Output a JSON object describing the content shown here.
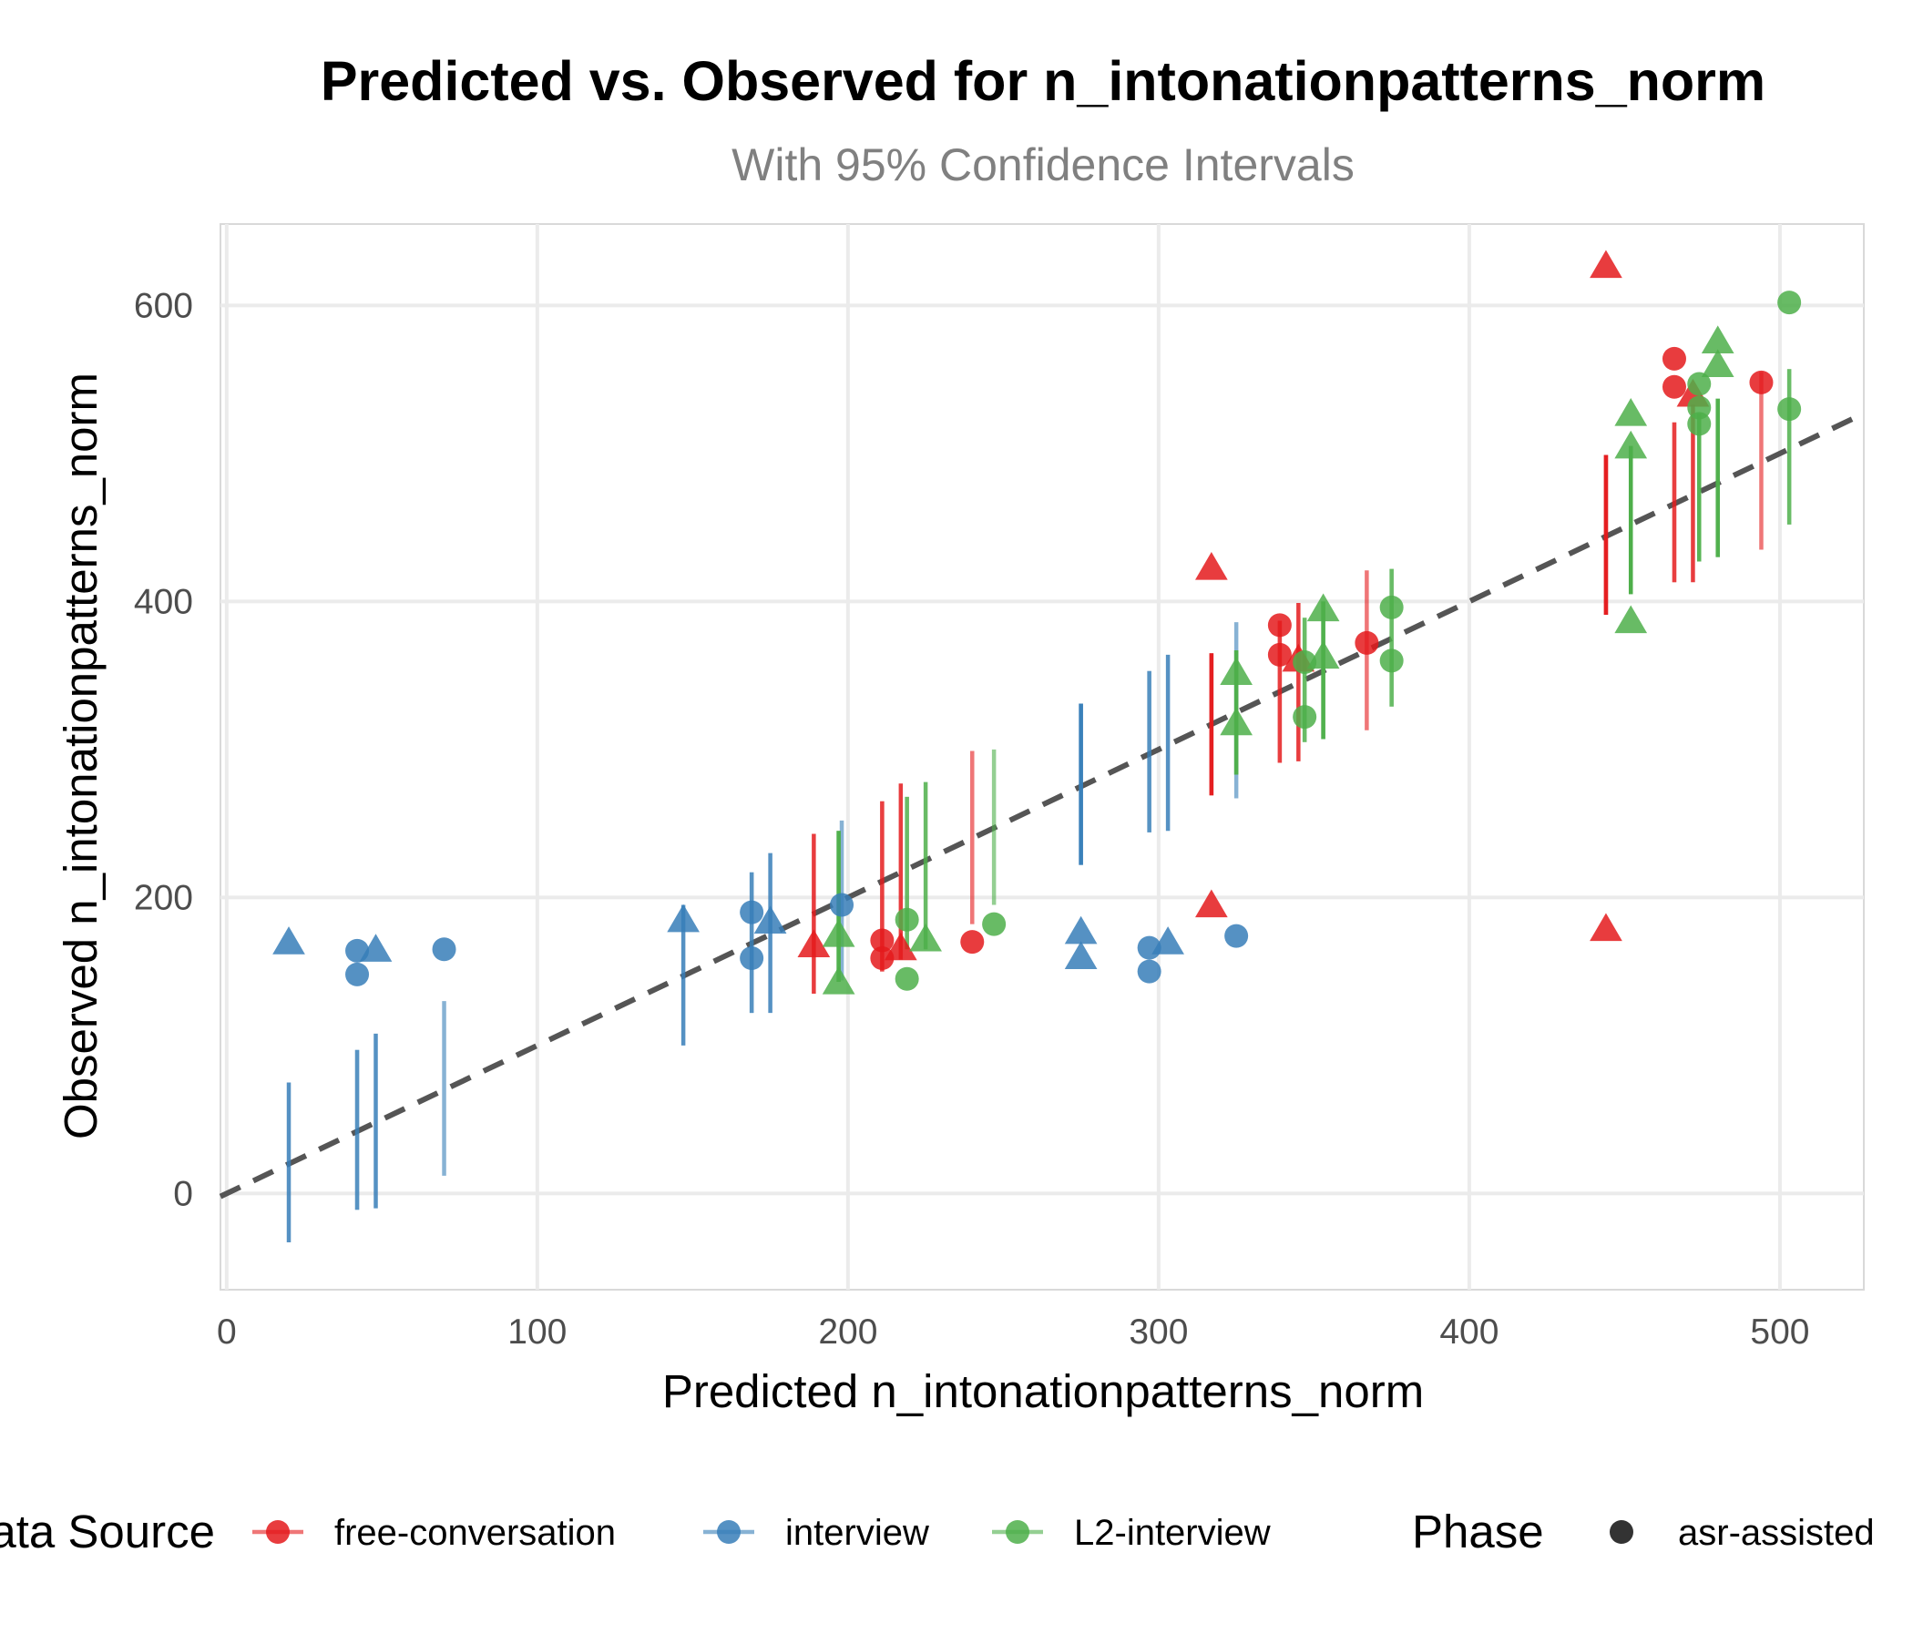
{
  "chart_data": {
    "type": "scatter",
    "title": "Predicted vs. Observed for n_intonationpatterns_norm",
    "subtitle": "With 95% Confidence Intervals",
    "xlabel": "Predicted n_intonationpatterns_norm",
    "ylabel": "Observed n_intonationpatterns_norm",
    "xlim": [
      -2,
      527
    ],
    "ylim": [
      -65,
      655
    ],
    "x_ticks": [
      0,
      100,
      200,
      300,
      400,
      500
    ],
    "y_ticks": [
      0,
      200,
      400,
      600
    ],
    "grid": true,
    "reference_line": {
      "type": "identity",
      "style": "dashed",
      "color": "#555555"
    },
    "legend": {
      "position": "bottom",
      "color_title": "Data Source",
      "shape_title": "Phase",
      "shape_items": [
        {
          "label": "asr-assisted",
          "shape": "circle"
        }
      ]
    },
    "series": [
      {
        "name": "free-conversation",
        "color": "#E41A1C",
        "points": [
          {
            "x": 189,
            "y": 168,
            "ci": [
              135,
              243
            ],
            "shape": "triangle"
          },
          {
            "x": 211,
            "y": 171,
            "ci": [
              150,
              265
            ],
            "shape": "circle"
          },
          {
            "x": 211,
            "y": 159,
            "ci": [
              150,
              265
            ],
            "shape": "circle"
          },
          {
            "x": 217,
            "y": 166,
            "ci": [
              158,
              277
            ],
            "shape": "triangle"
          },
          {
            "x": 240,
            "y": 170,
            "ci": [
              182,
              299
            ],
            "shape": "circle"
          },
          {
            "x": 317,
            "y": 423,
            "ci": [
              269,
              365
            ],
            "shape": "triangle"
          },
          {
            "x": 317,
            "y": 195,
            "ci": [
              269,
              365
            ],
            "shape": "triangle"
          },
          {
            "x": 339,
            "y": 384,
            "ci": [
              291,
              387
            ],
            "shape": "circle"
          },
          {
            "x": 339,
            "y": 364,
            "ci": [
              291,
              387
            ],
            "shape": "circle"
          },
          {
            "x": 345,
            "y": 361,
            "ci": [
              292,
              399
            ],
            "shape": "triangle"
          },
          {
            "x": 367,
            "y": 372,
            "ci": [
              313,
              421
            ],
            "shape": "circle"
          },
          {
            "x": 444,
            "y": 627,
            "ci": [
              391,
              499
            ],
            "shape": "triangle"
          },
          {
            "x": 444,
            "y": 179,
            "ci": [
              391,
              499
            ],
            "shape": "triangle"
          },
          {
            "x": 466,
            "y": 564,
            "ci": [
              413,
              521
            ],
            "shape": "circle"
          },
          {
            "x": 466,
            "y": 545,
            "ci": [
              413,
              521
            ],
            "shape": "circle"
          },
          {
            "x": 472,
            "y": 540,
            "ci": [
              413,
              533
            ],
            "shape": "triangle"
          },
          {
            "x": 494,
            "y": 548,
            "ci": [
              435,
              555
            ],
            "shape": "circle"
          }
        ]
      },
      {
        "name": "interview",
        "color": "#377EB8",
        "points": [
          {
            "x": 20,
            "y": 170,
            "ci": [
              -33,
              75
            ],
            "shape": "triangle"
          },
          {
            "x": 42,
            "y": 164,
            "ci": [
              -11,
              97
            ],
            "shape": "circle"
          },
          {
            "x": 42,
            "y": 148,
            "ci": [
              -11,
              97
            ],
            "shape": "circle"
          },
          {
            "x": 48,
            "y": 165,
            "ci": [
              -10,
              108
            ],
            "shape": "triangle"
          },
          {
            "x": 70,
            "y": 165,
            "ci": [
              12,
              130
            ],
            "shape": "circle"
          },
          {
            "x": 147,
            "y": 185,
            "ci": [
              100,
              195
            ],
            "shape": "triangle"
          },
          {
            "x": 169,
            "y": 190,
            "ci": [
              122,
              217
            ],
            "shape": "circle"
          },
          {
            "x": 169,
            "y": 159,
            "ci": [
              122,
              217
            ],
            "shape": "circle"
          },
          {
            "x": 175,
            "y": 184,
            "ci": [
              122,
              230
            ],
            "shape": "triangle"
          },
          {
            "x": 198,
            "y": 195,
            "ci": [
              144,
              252
            ],
            "shape": "circle"
          },
          {
            "x": 275,
            "y": 177,
            "ci": [
              222,
              331
            ],
            "shape": "triangle"
          },
          {
            "x": 275,
            "y": 160,
            "ci": [
              222,
              331
            ],
            "shape": "triangle"
          },
          {
            "x": 297,
            "y": 166,
            "ci": [
              244,
              353
            ],
            "shape": "circle"
          },
          {
            "x": 297,
            "y": 150,
            "ci": [
              244,
              353
            ],
            "shape": "circle"
          },
          {
            "x": 303,
            "y": 170,
            "ci": [
              245,
              364
            ],
            "shape": "triangle"
          },
          {
            "x": 325,
            "y": 174,
            "ci": [
              267,
              386
            ],
            "shape": "circle"
          }
        ]
      },
      {
        "name": "L2-interview",
        "color": "#4DAF4A",
        "points": [
          {
            "x": 197,
            "y": 175,
            "ci": [
              143,
              245
            ],
            "shape": "triangle"
          },
          {
            "x": 197,
            "y": 143,
            "ci": [
              143,
              245
            ],
            "shape": "triangle"
          },
          {
            "x": 219,
            "y": 185,
            "ci": [
              165,
              268
            ],
            "shape": "circle"
          },
          {
            "x": 219,
            "y": 145,
            "ci": [
              165,
              268
            ],
            "shape": "circle"
          },
          {
            "x": 225,
            "y": 172,
            "ci": [
              165,
              278
            ],
            "shape": "triangle"
          },
          {
            "x": 247,
            "y": 182,
            "ci": [
              195,
              300
            ],
            "shape": "circle"
          },
          {
            "x": 325,
            "y": 352,
            "ci": [
              283,
              367
            ],
            "shape": "triangle"
          },
          {
            "x": 325,
            "y": 318,
            "ci": [
              283,
              367
            ],
            "shape": "triangle"
          },
          {
            "x": 347,
            "y": 359,
            "ci": [
              305,
              389
            ],
            "shape": "circle"
          },
          {
            "x": 347,
            "y": 322,
            "ci": [
              305,
              389
            ],
            "shape": "circle"
          },
          {
            "x": 353,
            "y": 395,
            "ci": [
              307,
              400
            ],
            "shape": "triangle"
          },
          {
            "x": 353,
            "y": 363,
            "ci": [
              307,
              400
            ],
            "shape": "triangle"
          },
          {
            "x": 375,
            "y": 396,
            "ci": [
              329,
              422
            ],
            "shape": "circle"
          },
          {
            "x": 375,
            "y": 360,
            "ci": [
              329,
              422
            ],
            "shape": "circle"
          },
          {
            "x": 452,
            "y": 527,
            "ci": [
              405,
              505
            ],
            "shape": "triangle"
          },
          {
            "x": 452,
            "y": 505,
            "ci": [
              405,
              505
            ],
            "shape": "triangle"
          },
          {
            "x": 452,
            "y": 387,
            "ci": [
              405,
              505
            ],
            "shape": "triangle"
          },
          {
            "x": 474,
            "y": 547,
            "ci": [
              427,
              527
            ],
            "shape": "circle"
          },
          {
            "x": 474,
            "y": 531,
            "ci": [
              427,
              527
            ],
            "shape": "circle"
          },
          {
            "x": 474,
            "y": 520,
            "ci": [
              427,
              527
            ],
            "shape": "circle"
          },
          {
            "x": 480,
            "y": 576,
            "ci": [
              430,
              537
            ],
            "shape": "triangle"
          },
          {
            "x": 480,
            "y": 560,
            "ci": [
              430,
              537
            ],
            "shape": "triangle"
          },
          {
            "x": 503,
            "y": 602,
            "ci": [
              452,
              557
            ],
            "shape": "circle"
          },
          {
            "x": 503,
            "y": 530,
            "ci": [
              452,
              557
            ],
            "shape": "circle"
          }
        ]
      }
    ]
  }
}
